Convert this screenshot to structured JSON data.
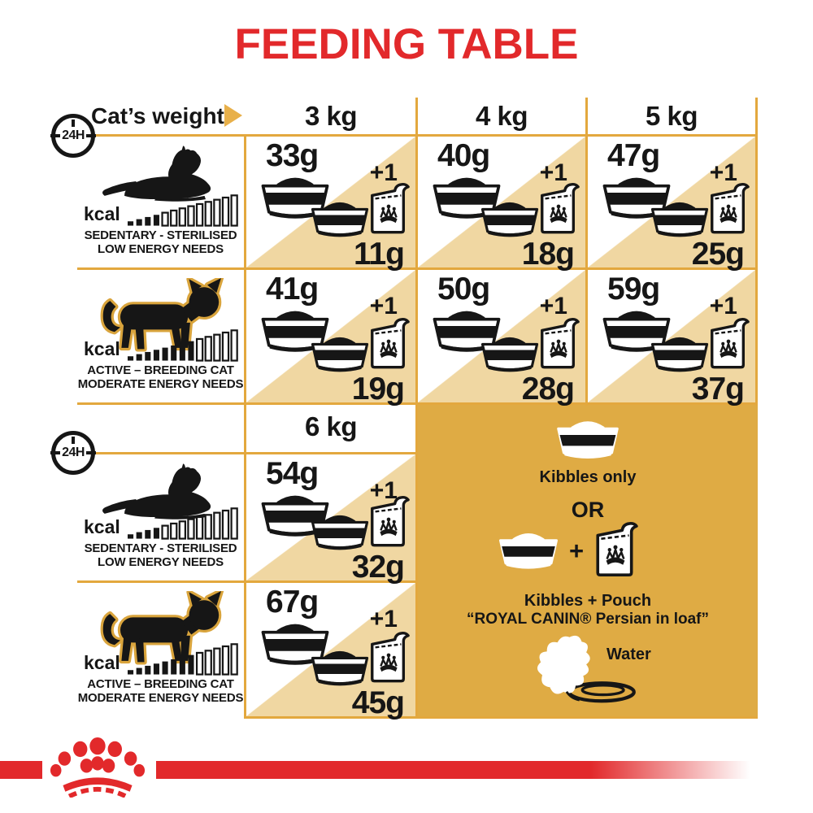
{
  "title": "FEEDING TABLE",
  "colors": {
    "red": "#E2292B",
    "gold_border": "#E3A83E",
    "gold_arrow": "#E8B04A",
    "tan": "#F0D7A2",
    "legend_gold": "#DFAB44",
    "ink": "#161616"
  },
  "header": {
    "label": "Cat’s weight",
    "duration_badge": "24H",
    "weights": [
      "3 kg",
      "4 kg",
      "5 kg"
    ],
    "weight_secondary": "6 kg"
  },
  "profiles": {
    "sedentary": {
      "kcal_label": "kcal",
      "caption_line1": "SEDENTARY - STERILISED",
      "caption_line2": "LOW ENERGY NEEDS",
      "bars_filled": 4,
      "bars_total": 13
    },
    "active": {
      "kcal_label": "kcal",
      "caption_line1": "ACTIVE – BREEDING CAT",
      "caption_line2": "MODERATE ENERGY NEEDS",
      "bars_filled": 8,
      "bars_total": 13
    }
  },
  "table": {
    "plus_label": "+1",
    "sedentary": {
      "kg3": {
        "kibbles_only": "33g",
        "kibbles_mixed": "11g"
      },
      "kg4": {
        "kibbles_only": "40g",
        "kibbles_mixed": "18g"
      },
      "kg5": {
        "kibbles_only": "47g",
        "kibbles_mixed": "25g"
      },
      "kg6": {
        "kibbles_only": "54g",
        "kibbles_mixed": "32g"
      }
    },
    "active": {
      "kg3": {
        "kibbles_only": "41g",
        "kibbles_mixed": "19g"
      },
      "kg4": {
        "kibbles_only": "50g",
        "kibbles_mixed": "28g"
      },
      "kg5": {
        "kibbles_only": "59g",
        "kibbles_mixed": "37g"
      },
      "kg6": {
        "kibbles_only": "67g",
        "kibbles_mixed": "45g"
      }
    }
  },
  "legend": {
    "kibbles_only_label": "Kibbles only",
    "or_label": "OR",
    "plus_sign": "+",
    "mixed_label_line1": "Kibbles + Pouch",
    "mixed_label_line2": "“ROYAL CANIN® Persian in loaf”",
    "water_label": "Water"
  }
}
